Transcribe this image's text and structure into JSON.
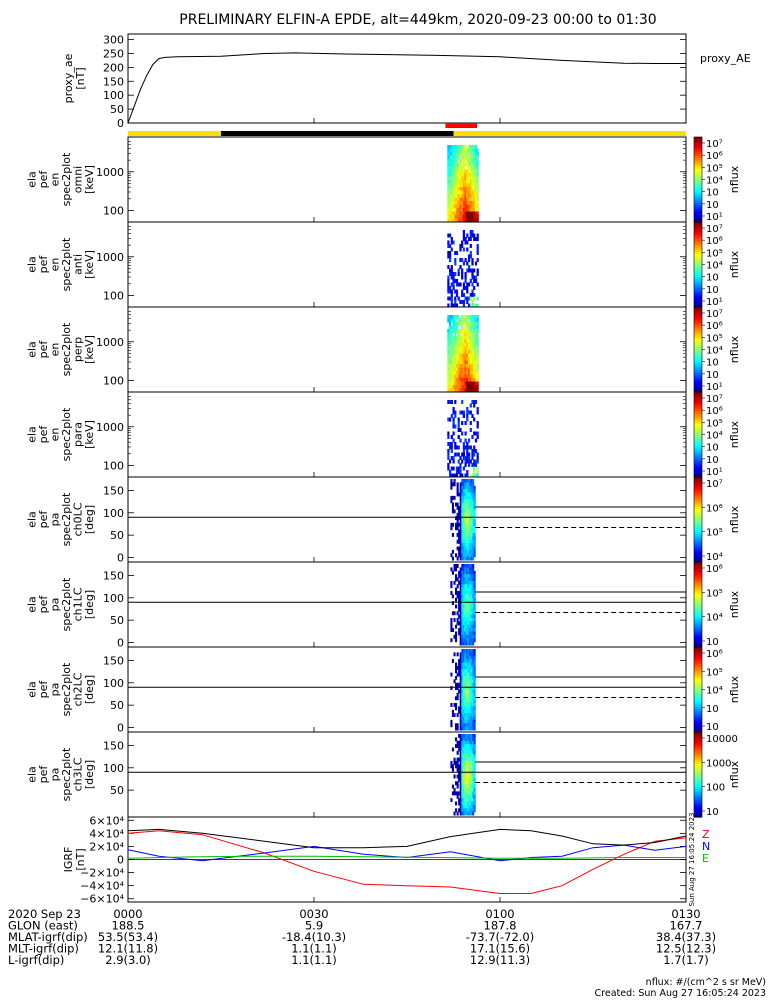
{
  "title": "PRELIMINARY ELFIN-A EPDE, alt=449km, 2020-09-23 00:00 to 01:30",
  "colors": {
    "sci_bar": "#ff0000",
    "status_yellow": "#ffdd00",
    "status_black": "#000000",
    "igrf_x": "#000000",
    "igrf_y": "#0000ff",
    "igrf_z": "#ff0000",
    "igrf_green": "#00c000"
  },
  "chart_data": [
    {
      "type": "line",
      "panel": "proxy_ae",
      "ylabel": "proxy_ae [nT]",
      "legend": "proxy_AE",
      "ytick_labels": [
        "300",
        "250",
        "200",
        "150",
        "100",
        "50",
        "0"
      ],
      "yticks": [
        300,
        250,
        200,
        150,
        100,
        50,
        0
      ],
      "ylim": [
        0,
        320
      ],
      "x_minutes": [
        0,
        1,
        2,
        3,
        4,
        5,
        6,
        8,
        15,
        22,
        27,
        35,
        50,
        60,
        70,
        80,
        85,
        90
      ],
      "values": [
        0,
        60,
        120,
        170,
        210,
        232,
        236,
        238,
        240,
        250,
        252,
        248,
        243,
        238,
        225,
        215,
        214,
        214
      ]
    },
    {
      "type": "heatmap",
      "panel": "spec-omni",
      "ylabel": [
        "ela",
        "pef",
        "en",
        "spec2plot",
        "omni",
        "[keV]"
      ],
      "ytick_labels": [
        "1000",
        "100"
      ],
      "ylog": true,
      "colorbar_label": "nflux",
      "colorbar_ticks": [
        "10⁷",
        "10⁶",
        "10⁵",
        "10⁴",
        "10⁳",
        "10⁲",
        "10¹"
      ],
      "x_window_minutes": [
        51.5,
        56.5
      ]
    },
    {
      "type": "heatmap",
      "panel": "spec-anti",
      "ylabel": [
        "ela",
        "pef",
        "en",
        "spec2plot",
        "anti",
        "[keV]"
      ],
      "ytick_labels": [
        "1000",
        "100"
      ],
      "ylog": true,
      "colorbar_label": "nflux",
      "colorbar_ticks": [
        "10⁷",
        "10⁶",
        "10⁵",
        "10⁴",
        "10⁳",
        "10⁲",
        "10¹"
      ],
      "x_window_minutes": [
        51.5,
        56.5
      ]
    },
    {
      "type": "heatmap",
      "panel": "spec-perp",
      "ylabel": [
        "ela",
        "pef",
        "en",
        "spec2plot",
        "perp",
        "[keV]"
      ],
      "ytick_labels": [
        "1000",
        "100"
      ],
      "ylog": true,
      "colorbar_label": "nflux",
      "colorbar_ticks": [
        "10⁷",
        "10⁶",
        "10⁵",
        "10⁴",
        "10⁳",
        "10⁲",
        "10¹"
      ],
      "x_window_minutes": [
        51.5,
        56.5
      ]
    },
    {
      "type": "heatmap",
      "panel": "spec-para",
      "ylabel": [
        "ela",
        "pef",
        "en",
        "spec2plot",
        "para",
        "[keV]"
      ],
      "ytick_labels": [
        "1000",
        "100"
      ],
      "ylog": true,
      "colorbar_label": "nflux",
      "colorbar_ticks": [
        "10⁷",
        "10⁶",
        "10⁵",
        "10⁴",
        "10⁳",
        "10⁲",
        "10¹"
      ],
      "x_window_minutes": [
        51.5,
        56.5
      ]
    },
    {
      "type": "heatmap",
      "panel": "pa-ch0LC",
      "ylabel": [
        "ela",
        "pef",
        "pa",
        "spec2plot",
        "ch0LC",
        "[deg]"
      ],
      "ytick_labels": [
        "150",
        "100",
        "50",
        "0"
      ],
      "yticks": [
        150,
        100,
        50,
        0
      ],
      "ylim": [
        -10,
        180
      ],
      "ref_lines": [
        {
          "y": 90,
          "style": "solid",
          "full": true
        },
        {
          "y": 113,
          "style": "solid",
          "full": false
        },
        {
          "y": 67,
          "style": "dashed",
          "full": false
        }
      ],
      "colorbar_label": "nflux",
      "colorbar_ticks": [
        "10⁷",
        "10⁶",
        "10⁵",
        "10⁴"
      ],
      "x_window_minutes": [
        52,
        56
      ]
    },
    {
      "type": "heatmap",
      "panel": "pa-ch1LC",
      "ylabel": [
        "ela",
        "pef",
        "pa",
        "spec2plot",
        "ch1LC",
        "[deg]"
      ],
      "ytick_labels": [
        "150",
        "100",
        "50",
        "0"
      ],
      "yticks": [
        150,
        100,
        50,
        0
      ],
      "ylim": [
        -10,
        180
      ],
      "ref_lines": [
        {
          "y": 90,
          "style": "solid",
          "full": true
        },
        {
          "y": 113,
          "style": "solid",
          "full": false
        },
        {
          "y": 67,
          "style": "dashed",
          "full": false
        }
      ],
      "colorbar_label": "nflux",
      "colorbar_ticks": [
        "10⁶",
        "10⁵",
        "10⁴",
        "10⁳"
      ],
      "x_window_minutes": [
        52,
        56
      ]
    },
    {
      "type": "heatmap",
      "panel": "pa-ch2LC",
      "ylabel": [
        "ela",
        "pef",
        "pa",
        "spec2plot",
        "ch2LC",
        "[deg]"
      ],
      "ytick_labels": [
        "150",
        "100",
        "50",
        "0"
      ],
      "yticks": [
        150,
        100,
        50,
        0
      ],
      "ylim": [
        -10,
        180
      ],
      "ref_lines": [
        {
          "y": 90,
          "style": "solid",
          "full": true
        },
        {
          "y": 113,
          "style": "solid",
          "full": false
        },
        {
          "y": 67,
          "style": "dashed",
          "full": false
        }
      ],
      "colorbar_label": "nflux",
      "colorbar_ticks": [
        "10⁶",
        "10⁵",
        "10⁴",
        "10⁳",
        "10⁲"
      ],
      "x_window_minutes": [
        52,
        56
      ]
    },
    {
      "type": "heatmap",
      "panel": "pa-ch3LC",
      "ylabel": [
        "ela",
        "pef",
        "pa",
        "spec2plot",
        "ch3LC",
        "[deg]"
      ],
      "ytick_labels": [
        "150",
        "100",
        "50"
      ],
      "yticks": [
        150,
        100,
        50
      ],
      "ylim": [
        -10,
        180
      ],
      "ref_lines": [
        {
          "y": 90,
          "style": "solid",
          "full": true
        },
        {
          "y": 113,
          "style": "solid",
          "full": false
        },
        {
          "y": 67,
          "style": "dashed",
          "full": false
        }
      ],
      "colorbar_label": "nflux",
      "colorbar_ticks": [
        "10000",
        "1000",
        "100",
        "10"
      ],
      "x_window_minutes": [
        52,
        56
      ]
    },
    {
      "type": "line",
      "panel": "igrf",
      "ylabel": "IGRF [nT]",
      "legend": [
        "Z",
        "N",
        "E"
      ],
      "ytick_labels": [
        "6×10⁴",
        "4×10⁴",
        "2×10⁴",
        "0",
        "−2×10⁴",
        "−4×10⁴",
        "−6×10⁴"
      ],
      "yticks": [
        60000,
        40000,
        20000,
        0,
        -20000,
        -40000,
        -60000
      ],
      "ylim": [
        -65000,
        65000
      ],
      "series": [
        {
          "name": "Z",
          "color_key": "igrf_z",
          "x": [
            0,
            5,
            12,
            22,
            30,
            38,
            45,
            52,
            60,
            65,
            70,
            75,
            80,
            85,
            90
          ],
          "values": [
            40000,
            44000,
            38000,
            10000,
            -18000,
            -38000,
            -40000,
            -42000,
            -52000,
            -52000,
            -40000,
            -15000,
            8000,
            28000,
            33000
          ]
        },
        {
          "name": "N",
          "color_key": "igrf_y",
          "x": [
            0,
            5,
            12,
            22,
            30,
            38,
            45,
            52,
            60,
            65,
            70,
            75,
            80,
            85,
            90
          ],
          "values": [
            15000,
            5000,
            -2000,
            10000,
            20000,
            8000,
            3000,
            12000,
            -2000,
            3000,
            5000,
            18000,
            22000,
            14000,
            20000
          ]
        },
        {
          "name": "",
          "color_key": "igrf_x",
          "x": [
            0,
            5,
            12,
            22,
            30,
            38,
            45,
            52,
            60,
            65,
            70,
            75,
            80,
            85,
            90
          ],
          "values": [
            44000,
            46000,
            40000,
            28000,
            18000,
            18000,
            20000,
            35000,
            46000,
            44000,
            36000,
            24000,
            22000,
            26000,
            36000
          ]
        },
        {
          "name": "E",
          "color_key": "igrf_green",
          "x": [
            0,
            10,
            20,
            30,
            40,
            50,
            60,
            70,
            80,
            90
          ],
          "values": [
            2000,
            4000,
            5000,
            5000,
            4000,
            3000,
            2000,
            2000,
            3000,
            3000
          ]
        }
      ]
    }
  ],
  "time_axis": {
    "tick_labels": [
      "0000",
      "0030",
      "0100",
      "0130"
    ],
    "tick_minutes": [
      0,
      30,
      60,
      90
    ],
    "rows": [
      {
        "label": "2020 Sep 23",
        "values": [
          "0000",
          "0030",
          "0100",
          "0130"
        ]
      },
      {
        "label": "GLON (east)",
        "values": [
          "188.5",
          "5.9",
          "187.8",
          "167.7"
        ]
      },
      {
        "label": "MLAT-igrf(dip)",
        "values": [
          "53.5(53.4)",
          "-18.4(10.3)",
          "-73.7(-72.0)",
          "38.4(37.3)"
        ]
      },
      {
        "label": "MLT-igrf(dip)",
        "values": [
          "12.1(11.8)",
          "1.1(1.1)",
          "17.1(15.6)",
          "12.5(12.3)"
        ]
      },
      {
        "label": "L-igrf(dip)",
        "values": [
          "2.9(3.0)",
          "1.1(1.1)",
          "12.9(11.3)",
          "1.7(1.7)"
        ]
      }
    ]
  },
  "footer": {
    "units": "nflux: #/(cm^2 s sr MeV)",
    "created": "Created: Sun Aug 27 16:05:24 2023",
    "side_stamp": "Sun Aug 27 16:05:24 2023"
  }
}
